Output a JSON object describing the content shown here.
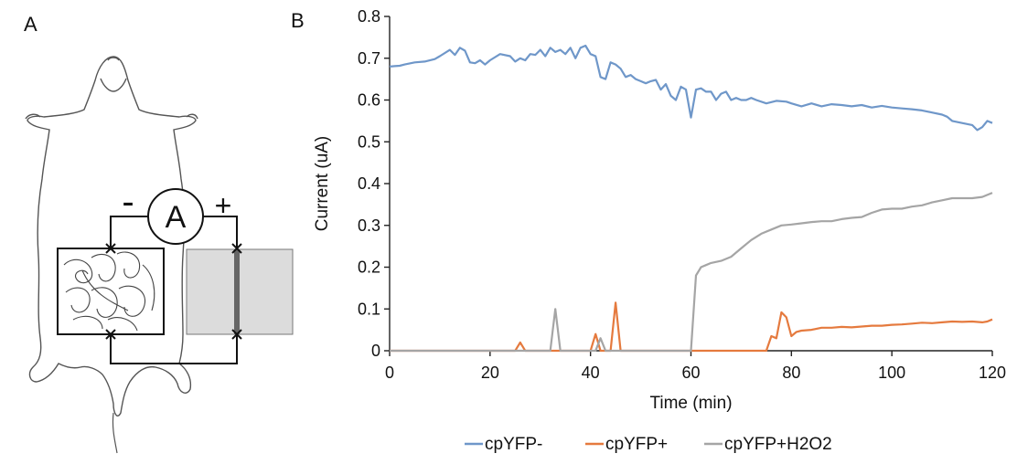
{
  "panels": {
    "a_label": "A",
    "b_label": "B"
  },
  "diagram": {
    "meter_label": "A",
    "minus_label": "-",
    "plus_label": "+"
  },
  "chart_data": {
    "type": "line",
    "title": "",
    "xlabel": "Time (min)",
    "ylabel": "Current (uA)",
    "xlim": [
      0,
      120
    ],
    "ylim": [
      0,
      0.8
    ],
    "xticks": [
      0,
      20,
      40,
      60,
      80,
      100,
      120
    ],
    "yticks": [
      0,
      0.1,
      0.2,
      0.3,
      0.4,
      0.5,
      0.6,
      0.7,
      0.8
    ],
    "grid": false,
    "legend_position": "bottom",
    "series": [
      {
        "name": "cpYFP-",
        "color": "#6F97C9",
        "points": [
          [
            0,
            0.68
          ],
          [
            1,
            0.681
          ],
          [
            2,
            0.682
          ],
          [
            3,
            0.685
          ],
          [
            5,
            0.69
          ],
          [
            7,
            0.692
          ],
          [
            9,
            0.698
          ],
          [
            10,
            0.705
          ],
          [
            12,
            0.72
          ],
          [
            13,
            0.708
          ],
          [
            14,
            0.725
          ],
          [
            15,
            0.718
          ],
          [
            16,
            0.69
          ],
          [
            17,
            0.688
          ],
          [
            18,
            0.695
          ],
          [
            19,
            0.685
          ],
          [
            20,
            0.695
          ],
          [
            22,
            0.71
          ],
          [
            24,
            0.705
          ],
          [
            25,
            0.692
          ],
          [
            26,
            0.7
          ],
          [
            27,
            0.695
          ],
          [
            28,
            0.71
          ],
          [
            29,
            0.708
          ],
          [
            30,
            0.72
          ],
          [
            31,
            0.705
          ],
          [
            32,
            0.725
          ],
          [
            33,
            0.715
          ],
          [
            34,
            0.72
          ],
          [
            35,
            0.71
          ],
          [
            36,
            0.725
          ],
          [
            37,
            0.7
          ],
          [
            38,
            0.725
          ],
          [
            39,
            0.73
          ],
          [
            40,
            0.71
          ],
          [
            41,
            0.705
          ],
          [
            42,
            0.655
          ],
          [
            43,
            0.65
          ],
          [
            44,
            0.69
          ],
          [
            45,
            0.685
          ],
          [
            46,
            0.675
          ],
          [
            47,
            0.655
          ],
          [
            48,
            0.66
          ],
          [
            49,
            0.65
          ],
          [
            50,
            0.645
          ],
          [
            51,
            0.64
          ],
          [
            52,
            0.645
          ],
          [
            53,
            0.648
          ],
          [
            54,
            0.625
          ],
          [
            55,
            0.638
          ],
          [
            56,
            0.61
          ],
          [
            57,
            0.6
          ],
          [
            58,
            0.632
          ],
          [
            59,
            0.625
          ],
          [
            60,
            0.558
          ],
          [
            61,
            0.625
          ],
          [
            62,
            0.628
          ],
          [
            63,
            0.62
          ],
          [
            64,
            0.62
          ],
          [
            65,
            0.6
          ],
          [
            66,
            0.615
          ],
          [
            67,
            0.62
          ],
          [
            68,
            0.6
          ],
          [
            69,
            0.605
          ],
          [
            70,
            0.6
          ],
          [
            71,
            0.6
          ],
          [
            72,
            0.605
          ],
          [
            73,
            0.6
          ],
          [
            75,
            0.592
          ],
          [
            77,
            0.598
          ],
          [
            79,
            0.596
          ],
          [
            80,
            0.592
          ],
          [
            82,
            0.585
          ],
          [
            84,
            0.592
          ],
          [
            86,
            0.585
          ],
          [
            88,
            0.59
          ],
          [
            90,
            0.588
          ],
          [
            92,
            0.585
          ],
          [
            94,
            0.588
          ],
          [
            96,
            0.582
          ],
          [
            98,
            0.586
          ],
          [
            100,
            0.582
          ],
          [
            102,
            0.58
          ],
          [
            104,
            0.578
          ],
          [
            106,
            0.575
          ],
          [
            108,
            0.57
          ],
          [
            110,
            0.565
          ],
          [
            111,
            0.56
          ],
          [
            112,
            0.55
          ],
          [
            114,
            0.545
          ],
          [
            116,
            0.54
          ],
          [
            117,
            0.528
          ],
          [
            118,
            0.535
          ],
          [
            119,
            0.55
          ],
          [
            120,
            0.545
          ]
        ]
      },
      {
        "name": "cpYFP+",
        "color": "#E57A3E",
        "points": [
          [
            0,
            0
          ],
          [
            25,
            0
          ],
          [
            26,
            0.02
          ],
          [
            27,
            0
          ],
          [
            40,
            0
          ],
          [
            41,
            0.04
          ],
          [
            42,
            0
          ],
          [
            44,
            0
          ],
          [
            45,
            0.115
          ],
          [
            46,
            0
          ],
          [
            75,
            0
          ],
          [
            76,
            0.035
          ],
          [
            77,
            0.03
          ],
          [
            78,
            0.092
          ],
          [
            79,
            0.08
          ],
          [
            80,
            0.035
          ],
          [
            81,
            0.045
          ],
          [
            82,
            0.048
          ],
          [
            84,
            0.05
          ],
          [
            86,
            0.055
          ],
          [
            88,
            0.055
          ],
          [
            90,
            0.057
          ],
          [
            92,
            0.056
          ],
          [
            94,
            0.058
          ],
          [
            96,
            0.06
          ],
          [
            98,
            0.06
          ],
          [
            100,
            0.062
          ],
          [
            102,
            0.063
          ],
          [
            104,
            0.065
          ],
          [
            106,
            0.067
          ],
          [
            108,
            0.066
          ],
          [
            110,
            0.068
          ],
          [
            112,
            0.07
          ],
          [
            114,
            0.069
          ],
          [
            116,
            0.07
          ],
          [
            118,
            0.068
          ],
          [
            119,
            0.07
          ],
          [
            120,
            0.075
          ]
        ]
      },
      {
        "name": "cpYFP+H2O2",
        "color": "#A5A5A5",
        "points": [
          [
            0,
            0
          ],
          [
            32,
            0
          ],
          [
            33,
            0.1
          ],
          [
            34,
            0
          ],
          [
            41,
            0
          ],
          [
            42,
            0.03
          ],
          [
            43,
            0
          ],
          [
            59,
            0
          ],
          [
            60,
            0
          ],
          [
            61,
            0.18
          ],
          [
            62,
            0.2
          ],
          [
            63,
            0.205
          ],
          [
            64,
            0.21
          ],
          [
            66,
            0.215
          ],
          [
            68,
            0.225
          ],
          [
            70,
            0.245
          ],
          [
            72,
            0.265
          ],
          [
            74,
            0.28
          ],
          [
            76,
            0.29
          ],
          [
            78,
            0.3
          ],
          [
            80,
            0.302
          ],
          [
            82,
            0.305
          ],
          [
            84,
            0.308
          ],
          [
            86,
            0.31
          ],
          [
            88,
            0.31
          ],
          [
            90,
            0.315
          ],
          [
            92,
            0.318
          ],
          [
            94,
            0.32
          ],
          [
            96,
            0.33
          ],
          [
            98,
            0.338
          ],
          [
            100,
            0.34
          ],
          [
            102,
            0.34
          ],
          [
            104,
            0.345
          ],
          [
            106,
            0.348
          ],
          [
            108,
            0.355
          ],
          [
            110,
            0.36
          ],
          [
            112,
            0.365
          ],
          [
            114,
            0.365
          ],
          [
            116,
            0.365
          ],
          [
            118,
            0.368
          ],
          [
            120,
            0.378
          ]
        ]
      }
    ]
  }
}
